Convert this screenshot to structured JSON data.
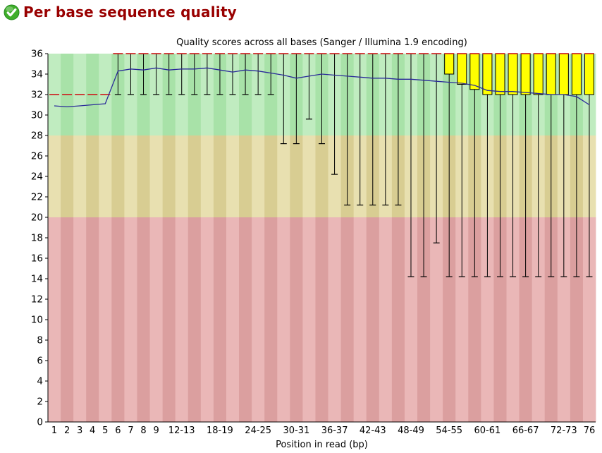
{
  "header": {
    "title": "Per base sequence quality",
    "status": "pass",
    "title_color": "#990000",
    "icon_color": "#3fae2a"
  },
  "chart_data": {
    "type": "boxplot",
    "title": "Quality scores across all bases (Sanger / Illumina 1.9 encoding)",
    "xlabel": "Position in read (bp)",
    "ylabel": "",
    "ylim": [
      0,
      36
    ],
    "ytick_step": 2,
    "grid": false,
    "legend": "none",
    "zones": [
      {
        "name": "good-quality",
        "from": 28,
        "to": 36,
        "colors": [
          "#c0ecc0",
          "#a8e2a8"
        ]
      },
      {
        "name": "ok-quality",
        "from": 20,
        "to": 28,
        "colors": [
          "#e8e0b0",
          "#d8cd92"
        ]
      },
      {
        "name": "poor-quality",
        "from": 0,
        "to": 20,
        "colors": [
          "#eab7b7",
          "#db9f9f"
        ]
      }
    ],
    "categories": [
      "1",
      "2",
      "3",
      "4",
      "5",
      "6",
      "7",
      "8",
      "9",
      "10-11",
      "12-13",
      "14-15",
      "16-17",
      "18-19",
      "20-21",
      "22-23",
      "24-25",
      "26-27",
      "28-29",
      "30-31",
      "32-33",
      "34-35",
      "36-37",
      "38-39",
      "40-41",
      "42-43",
      "44-45",
      "46-47",
      "48-49",
      "50-51",
      "52-53",
      "54-55",
      "56-57",
      "58-59",
      "60-61",
      "62-63",
      "64-65",
      "66-67",
      "68-69",
      "70-71",
      "72-73",
      "74-75",
      "76"
    ],
    "xtick_shown_indices": [
      0,
      1,
      2,
      3,
      4,
      5,
      6,
      7,
      8,
      10,
      13,
      16,
      19,
      22,
      25,
      28,
      31,
      34,
      37,
      40,
      42
    ],
    "series": {
      "mean": [
        30.9,
        30.8,
        30.9,
        31.0,
        31.1,
        34.3,
        34.5,
        34.4,
        34.6,
        34.4,
        34.5,
        34.5,
        34.6,
        34.4,
        34.2,
        34.4,
        34.3,
        34.1,
        33.9,
        33.6,
        33.8,
        34.0,
        33.9,
        33.8,
        33.7,
        33.6,
        33.6,
        33.5,
        33.5,
        33.4,
        33.3,
        33.2,
        33.1,
        32.9,
        32.4,
        32.3,
        32.3,
        32.2,
        32.1,
        32.0,
        32.0,
        31.8,
        31.0
      ],
      "median": [
        32,
        32,
        32,
        32,
        32,
        36,
        36,
        36,
        36,
        36,
        36,
        36,
        36,
        36,
        36,
        36,
        36,
        36,
        36,
        36,
        36,
        36,
        36,
        36,
        36,
        36,
        36,
        36,
        36,
        36,
        36,
        36,
        36,
        36,
        36,
        36,
        36,
        36,
        36,
        36,
        36,
        36,
        36
      ],
      "q1": [
        32,
        32,
        32,
        32,
        32,
        36,
        36,
        36,
        36,
        36,
        36,
        36,
        36,
        36,
        36,
        36,
        36,
        36,
        36,
        36,
        36,
        36,
        36,
        36,
        36,
        36,
        36,
        36,
        36,
        36,
        36,
        34,
        33,
        32.5,
        32,
        32,
        32,
        32,
        32,
        32,
        32,
        32,
        32
      ],
      "q3": [
        32,
        32,
        32,
        32,
        32,
        36,
        36,
        36,
        36,
        36,
        36,
        36,
        36,
        36,
        36,
        36,
        36,
        36,
        36,
        36,
        36,
        36,
        36,
        36,
        36,
        36,
        36,
        36,
        36,
        36,
        36,
        36,
        36,
        36,
        36,
        36,
        36,
        36,
        36,
        36,
        36,
        36,
        36
      ],
      "whisker_low": [
        32,
        32,
        32,
        32,
        32,
        32,
        32,
        32,
        32,
        32,
        32,
        32,
        32,
        32,
        32,
        32,
        32,
        32,
        27.2,
        27.2,
        29.6,
        27.2,
        24.2,
        21.2,
        21.2,
        21.2,
        21.2,
        21.2,
        14.2,
        14.2,
        17.5,
        14.2,
        14.2,
        14.2,
        14.2,
        14.2,
        14.2,
        14.2,
        14.2,
        14.2,
        14.2,
        14.2,
        14.2
      ],
      "whisker_high": [
        32,
        32,
        32,
        32,
        32,
        36,
        36,
        36,
        36,
        36,
        36,
        36,
        36,
        36,
        36,
        36,
        36,
        36,
        36,
        36,
        36,
        36,
        36,
        36,
        36,
        36,
        36,
        36,
        36,
        36,
        36,
        36,
        36,
        36,
        36,
        36,
        36,
        36,
        36,
        36,
        36,
        36,
        36
      ]
    },
    "style": {
      "mean_color": "#2a2a99",
      "median_color": "#cc2222",
      "box_fill": "#ffff00",
      "box_stroke": "#000000",
      "whisker_color": "#000000",
      "axis_color": "#000000",
      "text_color": "#000000"
    }
  }
}
